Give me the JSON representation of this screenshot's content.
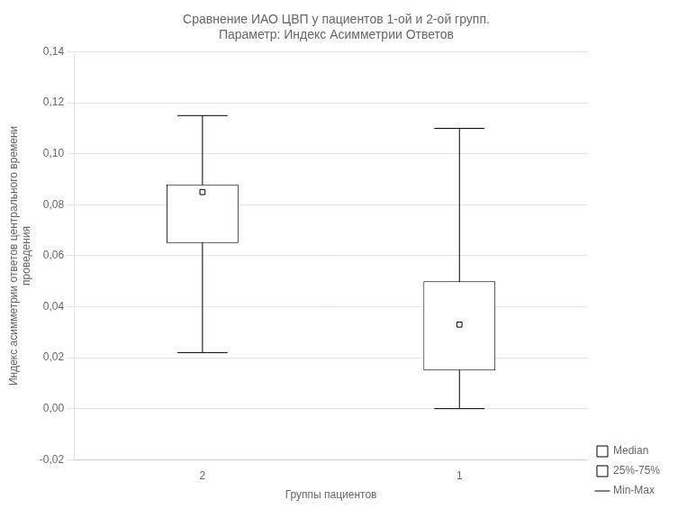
{
  "chart_data": {
    "type": "box",
    "title": "Сравнение ИАО ЦВП у пациентов 1-ой и 2-ой групп.\nПараметр: Индекс Асимметрии Ответов",
    "xlabel": "Группы пациентов",
    "ylabel": "Индекс асимметрии ответов центрального времени\nпроведения",
    "categories": [
      "2",
      "1"
    ],
    "series": [
      {
        "name": "Median",
        "type": "scatter",
        "marker": "square",
        "color": "#000000",
        "values": [
          0.085,
          0.033
        ]
      },
      {
        "name": "25%-75%",
        "type": "bar",
        "color": "#000000",
        "values": [
          [
            0.065,
            0.088
          ],
          [
            0.015,
            0.05
          ]
        ]
      },
      {
        "name": "Min-Max",
        "type": "whisker",
        "color": "#000000",
        "values": [
          [
            0.022,
            0.115
          ],
          [
            0,
            0.11
          ]
        ]
      }
    ],
    "ylim": [
      -0.02,
      0.14
    ],
    "yticks": [
      {
        "value": -0.02,
        "label": "-0,02"
      },
      {
        "value": 0,
        "label": "0,00"
      },
      {
        "value": 0.02,
        "label": "0,02"
      },
      {
        "value": 0.04,
        "label": "0,04"
      },
      {
        "value": 0.06,
        "label": "0,06"
      },
      {
        "value": 0.08,
        "label": "0,08"
      },
      {
        "value": 0.1,
        "label": "0,10"
      },
      {
        "value": 0.12,
        "label": "0,12"
      },
      {
        "value": 0.14,
        "label": "0,14"
      }
    ],
    "grid": "y",
    "legend": "lower right"
  }
}
